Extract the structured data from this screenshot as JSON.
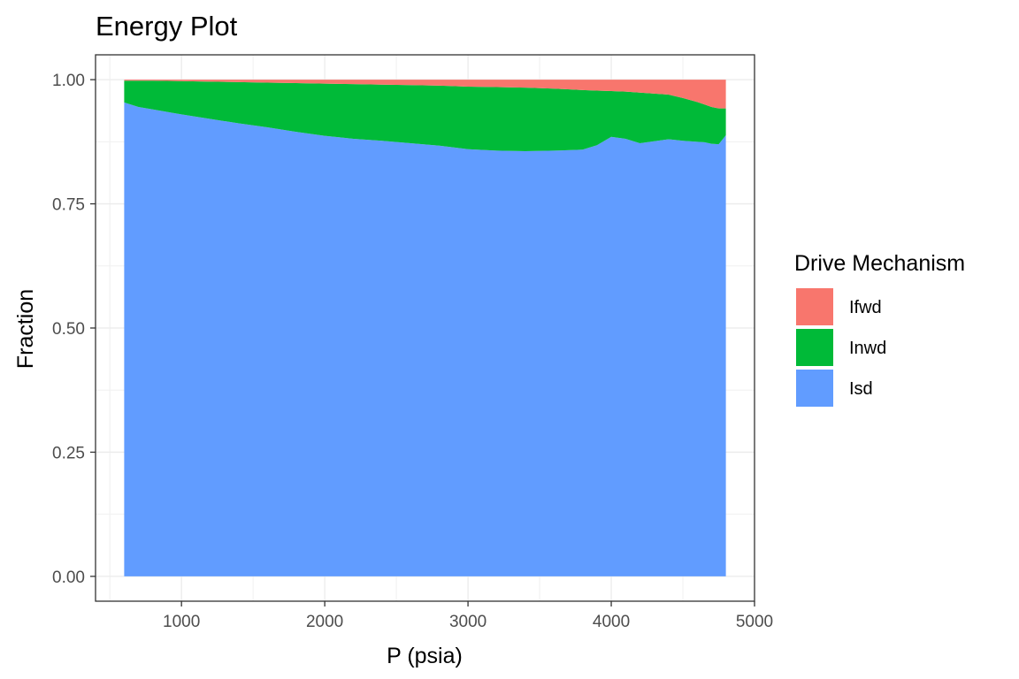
{
  "chart_data": {
    "type": "area",
    "stacked": true,
    "title": "Energy Plot",
    "xlabel": "P (psia)",
    "ylabel": "Fraction",
    "xlim": [
      400,
      5000
    ],
    "ylim": [
      -0.05,
      1.05
    ],
    "xticks": [
      1000,
      2000,
      3000,
      4000,
      5000
    ],
    "xtick_labels": [
      "1000",
      "2000",
      "3000",
      "4000",
      "5000"
    ],
    "yticks": [
      0,
      0.25,
      0.5,
      0.75,
      1.0
    ],
    "ytick_labels": [
      "0.00",
      "0.25",
      "0.50",
      "0.75",
      "1.00"
    ],
    "grid": true,
    "legend": {
      "title": "Drive Mechanism",
      "position": "right"
    },
    "x": [
      600,
      700,
      800,
      1000,
      1200,
      1400,
      1600,
      1800,
      2000,
      2200,
      2400,
      2600,
      2800,
      3000,
      3200,
      3400,
      3600,
      3800,
      3900,
      4000,
      4100,
      4200,
      4300,
      4400,
      4500,
      4600,
      4650,
      4700,
      4750,
      4800
    ],
    "series": [
      {
        "name": "Ifwd",
        "color": "#F8766D",
        "values": [
          0.002,
          0.002,
          0.002,
          0.003,
          0.004,
          0.005,
          0.006,
          0.007,
          0.008,
          0.009,
          0.01,
          0.011,
          0.012,
          0.014,
          0.015,
          0.016,
          0.018,
          0.021,
          0.022,
          0.023,
          0.024,
          0.026,
          0.028,
          0.03,
          0.037,
          0.045,
          0.05,
          0.055,
          0.058,
          0.058
        ]
      },
      {
        "name": "Inwd",
        "color": "#00BA38",
        "values": [
          0.044,
          0.053,
          0.058,
          0.067,
          0.075,
          0.083,
          0.09,
          0.098,
          0.105,
          0.11,
          0.113,
          0.117,
          0.121,
          0.126,
          0.128,
          0.128,
          0.125,
          0.12,
          0.11,
          0.092,
          0.095,
          0.102,
          0.096,
          0.09,
          0.086,
          0.08,
          0.076,
          0.074,
          0.072,
          0.054
        ]
      },
      {
        "name": "Isd",
        "color": "#619CFF",
        "values": [
          0.954,
          0.945,
          0.94,
          0.93,
          0.921,
          0.912,
          0.904,
          0.895,
          0.887,
          0.881,
          0.877,
          0.872,
          0.867,
          0.86,
          0.857,
          0.856,
          0.857,
          0.859,
          0.868,
          0.885,
          0.881,
          0.872,
          0.876,
          0.88,
          0.877,
          0.875,
          0.874,
          0.871,
          0.87,
          0.888
        ]
      }
    ]
  }
}
